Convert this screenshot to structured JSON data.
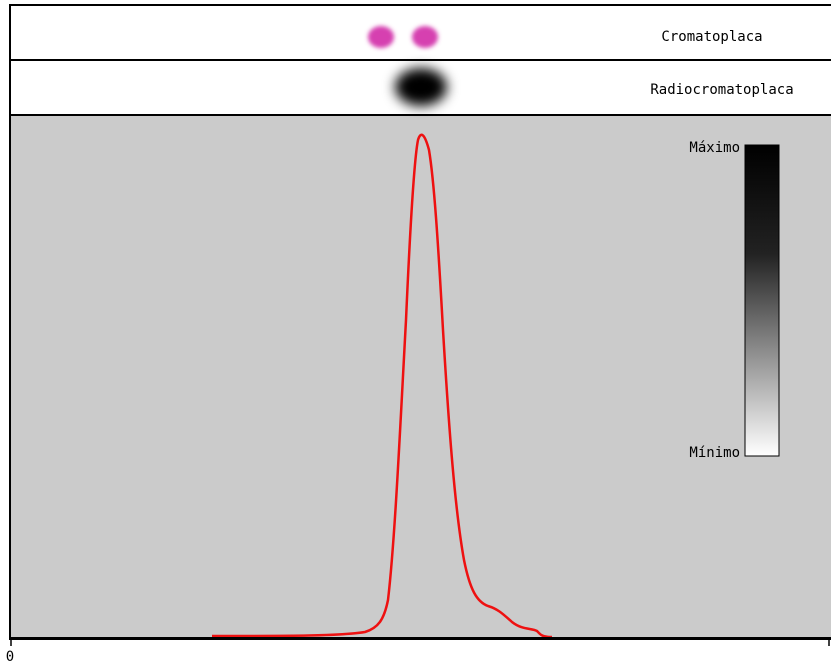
{
  "panel": {
    "row1": "Cromatoplaca",
    "row2": "Radiocromatoplaca"
  },
  "scale": {
    "max": "Máximo",
    "min": "Mínimo"
  },
  "axis": {
    "origin": "0"
  }
}
